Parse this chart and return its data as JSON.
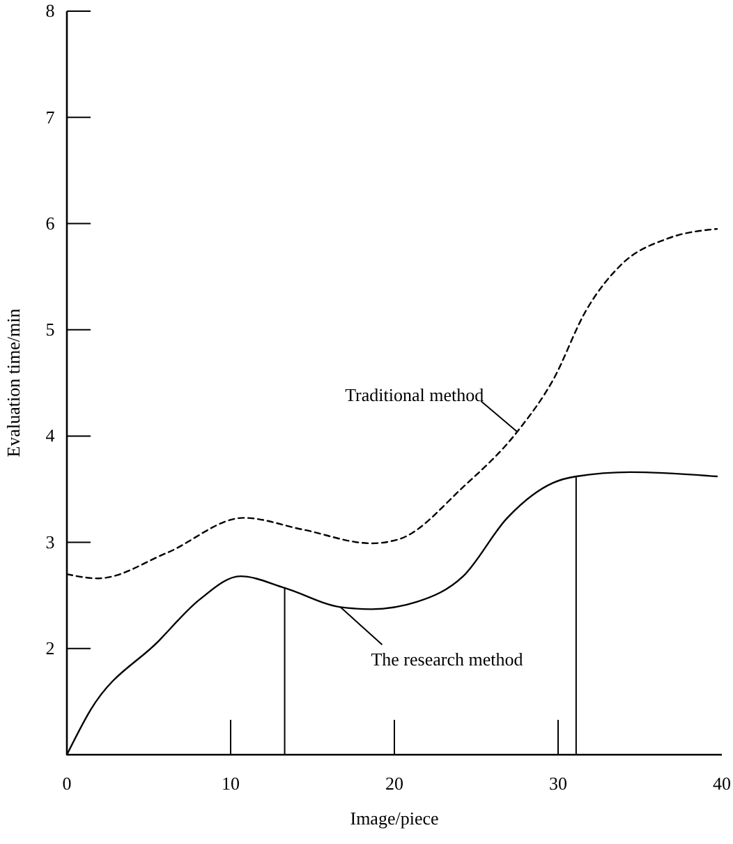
{
  "chart_data": {
    "type": "line",
    "xlabel": "Image/piece",
    "ylabel": "Evaluation time/min",
    "xlim": [
      0,
      40
    ],
    "xticks": [
      0,
      10,
      20,
      30,
      40
    ],
    "ylim": [
      1,
      8
    ],
    "yticks": [
      2,
      3,
      4,
      5,
      6,
      7,
      8
    ],
    "grid": false,
    "marker": "none",
    "series": [
      {
        "name": "The research method",
        "color": "#000000",
        "line_style": "solid",
        "x": [
          0,
          1.4,
          5.6,
          8.1,
          10.6,
          13.3,
          16.7,
          18.6,
          21.4,
          24.2,
          26.9,
          29.7,
          31.1,
          34.4,
          39.7
        ],
        "values": [
          1.0,
          1.41,
          2.07,
          2.46,
          2.68,
          2.57,
          2.39,
          2.37,
          2.44,
          2.68,
          3.23,
          3.56,
          3.62,
          3.66,
          3.62
        ]
      },
      {
        "name": "Traditional method",
        "color": "#000000",
        "line_style": "dashed",
        "x": [
          0,
          1.9,
          6.1,
          10.8,
          14.4,
          18.6,
          20.3,
          24.2,
          27.5,
          29.7,
          31.7,
          33.9,
          36.7,
          39.7
        ],
        "values": [
          2.7,
          2.66,
          2.9,
          3.23,
          3.12,
          2.99,
          3.03,
          3.52,
          4.04,
          4.53,
          5.18,
          5.62,
          5.86,
          5.95
        ]
      }
    ]
  }
}
